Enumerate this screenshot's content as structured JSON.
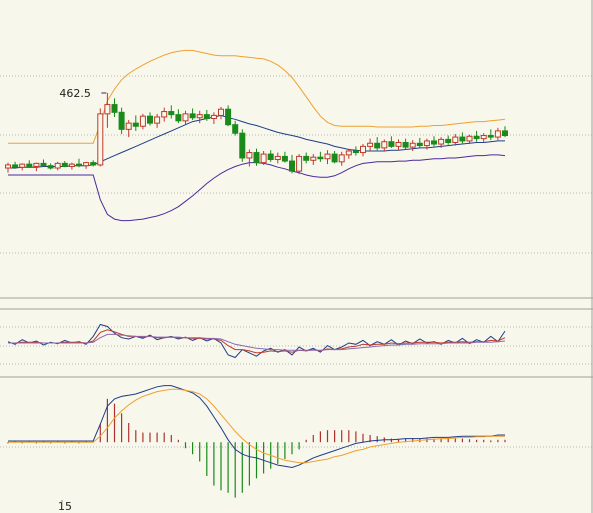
{
  "chart_data": [
    {
      "type": "candlestick",
      "panel": "price",
      "annotation": "462.5",
      "colors": {
        "up": "#c0392b",
        "down": "#1a8a1a",
        "boll_upper": "#f0a030",
        "boll_mid": "#1f3c88",
        "boll_lower": "#4b2a9e",
        "grid": "#b8b8b8"
      },
      "series_names": [],
      "candles": [
        [
          452.8,
          453.5,
          452.2,
          453.2
        ],
        [
          453.2,
          453.6,
          452.7,
          452.9
        ],
        [
          452.9,
          453.4,
          452.5,
          453.3
        ],
        [
          453.3,
          453.8,
          452.8,
          453.0
        ],
        [
          453.0,
          453.5,
          452.4,
          453.4
        ],
        [
          453.4,
          453.9,
          453.0,
          453.1
        ],
        [
          453.1,
          453.4,
          452.6,
          452.8
        ],
        [
          452.8,
          453.6,
          452.5,
          453.4
        ],
        [
          453.4,
          453.7,
          452.9,
          453.0
        ],
        [
          453.0,
          453.5,
          452.6,
          453.3
        ],
        [
          453.3,
          454.0,
          452.9,
          453.1
        ],
        [
          453.1,
          453.6,
          452.7,
          453.5
        ],
        [
          453.5,
          453.8,
          453.0,
          453.2
        ],
        [
          453.2,
          460.5,
          453.0,
          459.8
        ],
        [
          459.8,
          462.5,
          458.0,
          461.0
        ],
        [
          461.0,
          461.8,
          459.4,
          460.0
        ],
        [
          460.0,
          460.6,
          457.2,
          457.8
        ],
        [
          457.8,
          459.0,
          456.8,
          458.6
        ],
        [
          458.6,
          459.6,
          457.6,
          458.2
        ],
        [
          458.2,
          459.8,
          457.8,
          459.5
        ],
        [
          459.5,
          460.0,
          458.3,
          458.6
        ],
        [
          458.6,
          459.8,
          458.0,
          459.4
        ],
        [
          459.4,
          460.6,
          458.8,
          460.1
        ],
        [
          460.1,
          460.9,
          459.2,
          459.7
        ],
        [
          459.7,
          460.4,
          458.6,
          458.9
        ],
        [
          458.9,
          460.2,
          458.4,
          459.8
        ],
        [
          459.8,
          460.5,
          459.0,
          459.3
        ],
        [
          459.3,
          460.2,
          458.6,
          459.7
        ],
        [
          459.7,
          460.3,
          458.9,
          459.2
        ],
        [
          459.2,
          460.0,
          458.5,
          459.6
        ],
        [
          459.6,
          460.7,
          459.1,
          460.4
        ],
        [
          460.4,
          460.9,
          458.2,
          458.4
        ],
        [
          458.4,
          458.9,
          457.0,
          457.3
        ],
        [
          457.3,
          457.8,
          453.6,
          454.1
        ],
        [
          454.1,
          455.2,
          453.0,
          454.8
        ],
        [
          454.8,
          455.3,
          453.1,
          453.5
        ],
        [
          453.5,
          455.0,
          453.2,
          454.6
        ],
        [
          454.6,
          455.1,
          453.6,
          453.9
        ],
        [
          453.9,
          454.8,
          453.4,
          454.3
        ],
        [
          454.3,
          454.9,
          453.5,
          453.7
        ],
        [
          453.7,
          454.5,
          452.1,
          452.4
        ],
        [
          452.4,
          454.6,
          452.0,
          454.3
        ],
        [
          454.3,
          454.8,
          453.4,
          453.8
        ],
        [
          453.8,
          454.6,
          453.2,
          454.2
        ],
        [
          454.2,
          454.9,
          453.6,
          454.0
        ],
        [
          454.0,
          455.1,
          453.3,
          454.6
        ],
        [
          454.6,
          455.0,
          453.4,
          453.6
        ],
        [
          453.6,
          454.9,
          453.1,
          454.5
        ],
        [
          454.5,
          455.3,
          454.0,
          455.0
        ],
        [
          455.0,
          455.6,
          454.4,
          454.8
        ],
        [
          454.8,
          455.9,
          454.3,
          455.6
        ],
        [
          455.6,
          456.6,
          455.0,
          456.0
        ],
        [
          456.0,
          456.8,
          455.1,
          455.4
        ],
        [
          455.4,
          456.5,
          455.0,
          456.2
        ],
        [
          456.2,
          456.9,
          455.4,
          455.6
        ],
        [
          455.6,
          456.5,
          455.1,
          456.1
        ],
        [
          456.1,
          456.6,
          455.2,
          455.5
        ],
        [
          455.5,
          456.4,
          455.0,
          456.0
        ],
        [
          456.0,
          456.7,
          455.4,
          455.7
        ],
        [
          455.7,
          456.6,
          455.2,
          456.3
        ],
        [
          456.3,
          456.9,
          455.6,
          455.9
        ],
        [
          455.9,
          456.8,
          455.4,
          456.5
        ],
        [
          456.5,
          457.0,
          455.8,
          456.1
        ],
        [
          456.1,
          457.2,
          455.7,
          456.8
        ],
        [
          456.8,
          457.4,
          456.0,
          456.3
        ],
        [
          456.3,
          457.1,
          455.9,
          456.9
        ],
        [
          456.9,
          457.6,
          456.2,
          456.6
        ],
        [
          456.6,
          457.3,
          456.1,
          457.0
        ],
        [
          457.0,
          457.8,
          456.4,
          456.8
        ],
        [
          456.8,
          458.0,
          456.4,
          457.6
        ],
        [
          457.6,
          458.2,
          456.8,
          457.0
        ]
      ],
      "boll_upper": [
        456.0,
        456.0,
        456.0,
        456.0,
        456.0,
        456.0,
        456.0,
        456.0,
        456.0,
        456.0,
        456.0,
        456.0,
        456.0,
        458.5,
        461.5,
        463.0,
        464.2,
        465.0,
        465.6,
        466.1,
        466.6,
        467.0,
        467.4,
        467.7,
        467.9,
        468.0,
        468.0,
        467.8,
        467.6,
        467.4,
        467.3,
        467.3,
        467.3,
        467.2,
        467.1,
        467.0,
        466.9,
        466.6,
        466.1,
        465.4,
        464.5,
        463.3,
        462.0,
        460.7,
        459.5,
        458.7,
        458.3,
        458.2,
        458.2,
        458.2,
        458.2,
        458.2,
        458.1,
        458.1,
        458.1,
        458.1,
        458.1,
        458.1,
        458.2,
        458.2,
        458.3,
        458.3,
        458.4,
        458.5,
        458.6,
        458.7,
        458.8,
        458.8,
        458.9,
        459.0,
        459.1
      ],
      "boll_mid": [
        452.8,
        452.8,
        452.9,
        452.9,
        452.9,
        453.0,
        453.0,
        453.0,
        453.0,
        453.1,
        453.1,
        453.1,
        453.2,
        453.6,
        454.0,
        454.4,
        454.8,
        455.2,
        455.6,
        456.0,
        456.4,
        456.8,
        457.2,
        457.6,
        458.0,
        458.4,
        458.8,
        459.0,
        459.2,
        459.4,
        459.6,
        459.3,
        459.1,
        458.8,
        458.5,
        458.3,
        458.0,
        457.7,
        457.4,
        457.2,
        457.0,
        456.8,
        456.5,
        456.3,
        456.1,
        455.9,
        455.6,
        455.4,
        455.2,
        455.1,
        455.0,
        455.0,
        455.0,
        455.0,
        455.1,
        455.1,
        455.2,
        455.3,
        455.4,
        455.4,
        455.5,
        455.6,
        455.7,
        455.8,
        455.9,
        456.0,
        456.1,
        456.1,
        456.2,
        456.3,
        456.3
      ],
      "boll_lower": [
        451.9,
        451.9,
        451.9,
        451.9,
        451.9,
        451.9,
        451.9,
        451.9,
        451.9,
        451.9,
        451.9,
        451.9,
        451.9,
        448.7,
        446.8,
        446.2,
        446.0,
        446.0,
        446.1,
        446.2,
        446.4,
        446.6,
        446.9,
        447.3,
        447.8,
        448.5,
        449.2,
        450.0,
        450.8,
        451.5,
        452.1,
        452.6,
        453.0,
        453.3,
        453.5,
        453.5,
        453.4,
        453.2,
        452.9,
        452.7,
        452.4,
        452.2,
        451.9,
        451.7,
        451.6,
        451.6,
        451.8,
        452.2,
        452.7,
        453.1,
        453.4,
        453.5,
        453.6,
        453.6,
        453.6,
        453.7,
        453.7,
        453.8,
        453.8,
        453.9,
        454.0,
        454.0,
        454.1,
        454.1,
        454.2,
        454.3,
        454.4,
        454.4,
        454.5,
        454.5,
        454.4
      ],
      "ylim": [
        436,
        474
      ]
    },
    {
      "type": "line",
      "panel": "oscillator",
      "series_names": [],
      "series": [
        {
          "color": "#1f3c88",
          "values": [
            52,
            48,
            55,
            50,
            53,
            47,
            51,
            49,
            54,
            50,
            52,
            48,
            60,
            78,
            75,
            65,
            58,
            56,
            60,
            57,
            62,
            55,
            58,
            60,
            56,
            59,
            54,
            58,
            53,
            57,
            50,
            32,
            28,
            40,
            35,
            30,
            38,
            42,
            36,
            40,
            32,
            44,
            38,
            42,
            36,
            46,
            40,
            44,
            50,
            48,
            54,
            46,
            52,
            48,
            55,
            47,
            53,
            49,
            56,
            50,
            52,
            48,
            54,
            50,
            57,
            49,
            55,
            51,
            60,
            52,
            68
          ]
        },
        {
          "color": "#c0392b",
          "values": [
            50,
            50,
            51,
            51,
            51,
            50,
            50,
            50,
            51,
            51,
            51,
            50,
            53,
            66,
            70,
            67,
            63,
            60,
            60,
            59,
            60,
            58,
            58,
            59,
            58,
            58,
            57,
            57,
            56,
            56,
            54,
            46,
            40,
            40,
            38,
            35,
            36,
            38,
            37,
            38,
            36,
            39,
            38,
            40,
            38,
            41,
            40,
            41,
            44,
            45,
            48,
            47,
            48,
            48,
            50,
            49,
            50,
            50,
            51,
            51,
            51,
            50,
            51,
            51,
            52,
            51,
            52,
            52,
            54,
            53,
            58
          ]
        },
        {
          "color": "#8a6bb0",
          "values": [
            50,
            50,
            50,
            50,
            50,
            50,
            50,
            50,
            50,
            50,
            50,
            50,
            51,
            58,
            63,
            63,
            62,
            61,
            60,
            60,
            60,
            59,
            59,
            59,
            59,
            58,
            58,
            58,
            57,
            57,
            56,
            52,
            48,
            46,
            44,
            42,
            41,
            40,
            40,
            39,
            39,
            39,
            39,
            39,
            39,
            40,
            40,
            40,
            41,
            42,
            43,
            44,
            45,
            46,
            47,
            47,
            48,
            48,
            49,
            49,
            49,
            49,
            50,
            50,
            50,
            50,
            51,
            51,
            51,
            52,
            53
          ]
        }
      ],
      "ylim": [
        0,
        100
      ]
    },
    {
      "type": "macd",
      "panel": "macd",
      "x_tick_labels": [
        {
          "index": 15,
          "label": "15"
        }
      ],
      "colors": {
        "pos": "#b03030",
        "neg": "#1a8a1a",
        "dif": "#1f3c88",
        "dea": "#f0a030"
      },
      "dif": [
        0.1,
        0.1,
        0.1,
        0.1,
        0.1,
        0.1,
        0.1,
        0.1,
        0.1,
        0.1,
        0.1,
        0.1,
        0.1,
        1.5,
        3.0,
        3.6,
        3.8,
        3.9,
        4.0,
        4.2,
        4.4,
        4.6,
        4.7,
        4.7,
        4.5,
        4.3,
        4.1,
        3.7,
        3.0,
        2.1,
        1.2,
        0.2,
        -0.6,
        -1.0,
        -1.2,
        -1.3,
        -1.5,
        -1.7,
        -1.9,
        -2.0,
        -2.1,
        -1.9,
        -1.6,
        -1.3,
        -1.1,
        -0.9,
        -0.7,
        -0.5,
        -0.3,
        -0.1,
        0.0,
        0.1,
        0.15,
        0.2,
        0.2,
        0.25,
        0.3,
        0.3,
        0.3,
        0.35,
        0.4,
        0.4,
        0.4,
        0.45,
        0.5,
        0.5,
        0.5,
        0.5,
        0.5,
        0.6,
        0.6
      ],
      "dea": [
        0.0,
        0.0,
        0.0,
        0.0,
        0.0,
        0.0,
        0.0,
        0.0,
        0.0,
        0.0,
        0.0,
        0.0,
        0.0,
        0.5,
        1.2,
        2.0,
        2.6,
        3.1,
        3.5,
        3.8,
        4.0,
        4.2,
        4.3,
        4.4,
        4.4,
        4.3,
        4.2,
        4.0,
        3.6,
        3.0,
        2.3,
        1.6,
        0.9,
        0.3,
        -0.2,
        -0.6,
        -0.9,
        -1.1,
        -1.3,
        -1.5,
        -1.6,
        -1.7,
        -1.7,
        -1.6,
        -1.5,
        -1.4,
        -1.2,
        -1.1,
        -0.9,
        -0.7,
        -0.6,
        -0.4,
        -0.3,
        -0.2,
        -0.1,
        0.0,
        0.05,
        0.1,
        0.15,
        0.2,
        0.25,
        0.3,
        0.3,
        0.35,
        0.4,
        0.4,
        0.45,
        0.45,
        0.5,
        0.5,
        0.5
      ],
      "hist": [
        -0.1,
        0.1,
        -0.1,
        0.1,
        -0.1,
        0.1,
        -0.1,
        0.1,
        -0.1,
        0.1,
        -0.1,
        0.1,
        0.1,
        1.5,
        3.6,
        3.2,
        2.4,
        1.6,
        1.0,
        0.8,
        0.8,
        0.8,
        0.8,
        0.6,
        0.2,
        -0.5,
        -1.0,
        -1.6,
        -2.8,
        -3.6,
        -4.0,
        -4.2,
        -4.6,
        -4.2,
        -3.6,
        -3.0,
        -2.6,
        -2.2,
        -1.8,
        -1.4,
        -1.0,
        -0.6,
        0.2,
        0.6,
        0.9,
        1.0,
        1.0,
        1.0,
        1.0,
        0.9,
        0.7,
        0.6,
        0.5,
        0.4,
        0.3,
        0.25,
        0.3,
        0.35,
        0.3,
        0.3,
        0.3,
        0.3,
        0.35,
        0.3,
        0.3,
        0.25,
        0.2,
        0.2,
        0.15,
        0.2,
        0.2
      ],
      "ylim": [
        -4.8,
        5.0
      ]
    }
  ]
}
